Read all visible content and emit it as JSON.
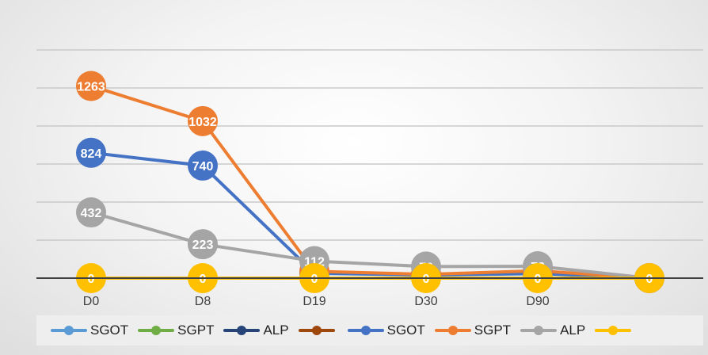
{
  "chart_data": {
    "type": "line",
    "categories": [
      "D0",
      "D8",
      "D19",
      "D30",
      "D90",
      ""
    ],
    "ylim": [
      0,
      1500
    ],
    "grid": true,
    "legend_position": "bottom",
    "series": [
      {
        "name": "SGOT",
        "color": "#5b9bd5",
        "values": [
          0,
          0,
          0,
          0,
          0,
          0
        ],
        "labels": false
      },
      {
        "name": "SGPT",
        "color": "#70ad47",
        "values": [
          0,
          0,
          0,
          0,
          0,
          0
        ],
        "labels": false
      },
      {
        "name": "ALP",
        "color": "#264478",
        "values": [
          0,
          0,
          0,
          0,
          0,
          0
        ],
        "labels": false
      },
      {
        "name": "",
        "color": "#9e480e",
        "values": [
          0,
          0,
          0,
          0,
          0,
          0
        ],
        "labels": false
      },
      {
        "name": "SGOT",
        "color": "#4472c4",
        "values": [
          824,
          740,
          32,
          20,
          30,
          0
        ],
        "labels": true
      },
      {
        "name": "SGPT",
        "color": "#ed7d31",
        "values": [
          1263,
          1032,
          45,
          25,
          48,
          0
        ],
        "labels": true
      },
      {
        "name": "ALP",
        "color": "#a5a5a5",
        "values": [
          432,
          223,
          112,
          76,
          78,
          0
        ],
        "labels": true
      },
      {
        "name": "",
        "color": "#ffc000",
        "values": [
          0,
          0,
          0,
          0,
          0,
          0
        ],
        "labels": true
      }
    ]
  }
}
